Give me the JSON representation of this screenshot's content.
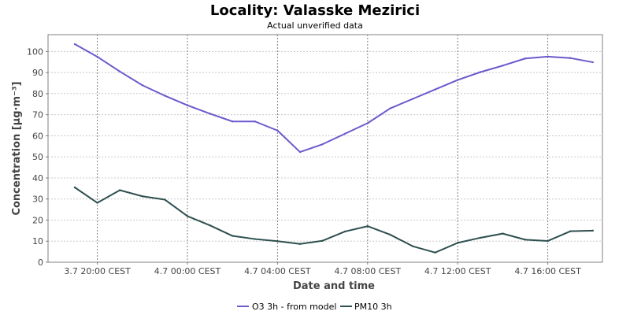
{
  "chart_data": {
    "type": "line",
    "title": "Locality: Valasske Mezirici",
    "subtitle": "Actual unverified data",
    "xlabel": "Date and time",
    "ylabel": "Concentration [µg·m⁻³]",
    "ylim": [
      0,
      108
    ],
    "y_ticks": [
      0,
      10,
      20,
      30,
      40,
      50,
      60,
      70,
      80,
      90,
      100
    ],
    "x_ticks": [
      "3.7 20:00 CEST",
      "4.7 00:00 CEST",
      "4.7 04:00 CEST",
      "4.7 08:00 CEST",
      "4.7 12:00 CEST",
      "4.7 16:00 CEST"
    ],
    "x_hours": [
      "3.7 19:00",
      "3.7 20:00",
      "3.7 21:00",
      "3.7 22:00",
      "3.7 23:00",
      "4.7 00:00",
      "4.7 01:00",
      "4.7 02:00",
      "4.7 03:00",
      "4.7 04:00",
      "4.7 05:00",
      "4.7 06:00",
      "4.7 07:00",
      "4.7 08:00",
      "4.7 09:00",
      "4.7 10:00",
      "4.7 11:00",
      "4.7 12:00",
      "4.7 13:00",
      "4.7 14:00",
      "4.7 15:00",
      "4.7 16:00",
      "4.7 17:00",
      "4.7 18:00"
    ],
    "grid": true,
    "legend_position": "bottom-center",
    "series": [
      {
        "name": "O3 3h - from model",
        "color": "#6a5acd",
        "values": [
          103.5,
          97.5,
          90.5,
          84,
          79,
          74.5,
          70.5,
          66.8,
          66.8,
          62.5,
          52.3,
          56,
          61,
          66,
          73,
          77.5,
          82,
          86.5,
          90.2,
          93.3,
          96.7,
          97.6,
          96.9,
          94.9
        ]
      },
      {
        "name": "PM10 3h",
        "color": "#2f4f4f",
        "values": [
          35.5,
          28.2,
          34.2,
          31.3,
          29.7,
          21.9,
          17.5,
          12.5,
          11,
          10,
          8.7,
          10.2,
          14.6,
          17.1,
          13.1,
          7.6,
          4.6,
          9.2,
          11.6,
          13.6,
          10.7,
          10.1,
          14.7,
          15
        ]
      }
    ]
  }
}
